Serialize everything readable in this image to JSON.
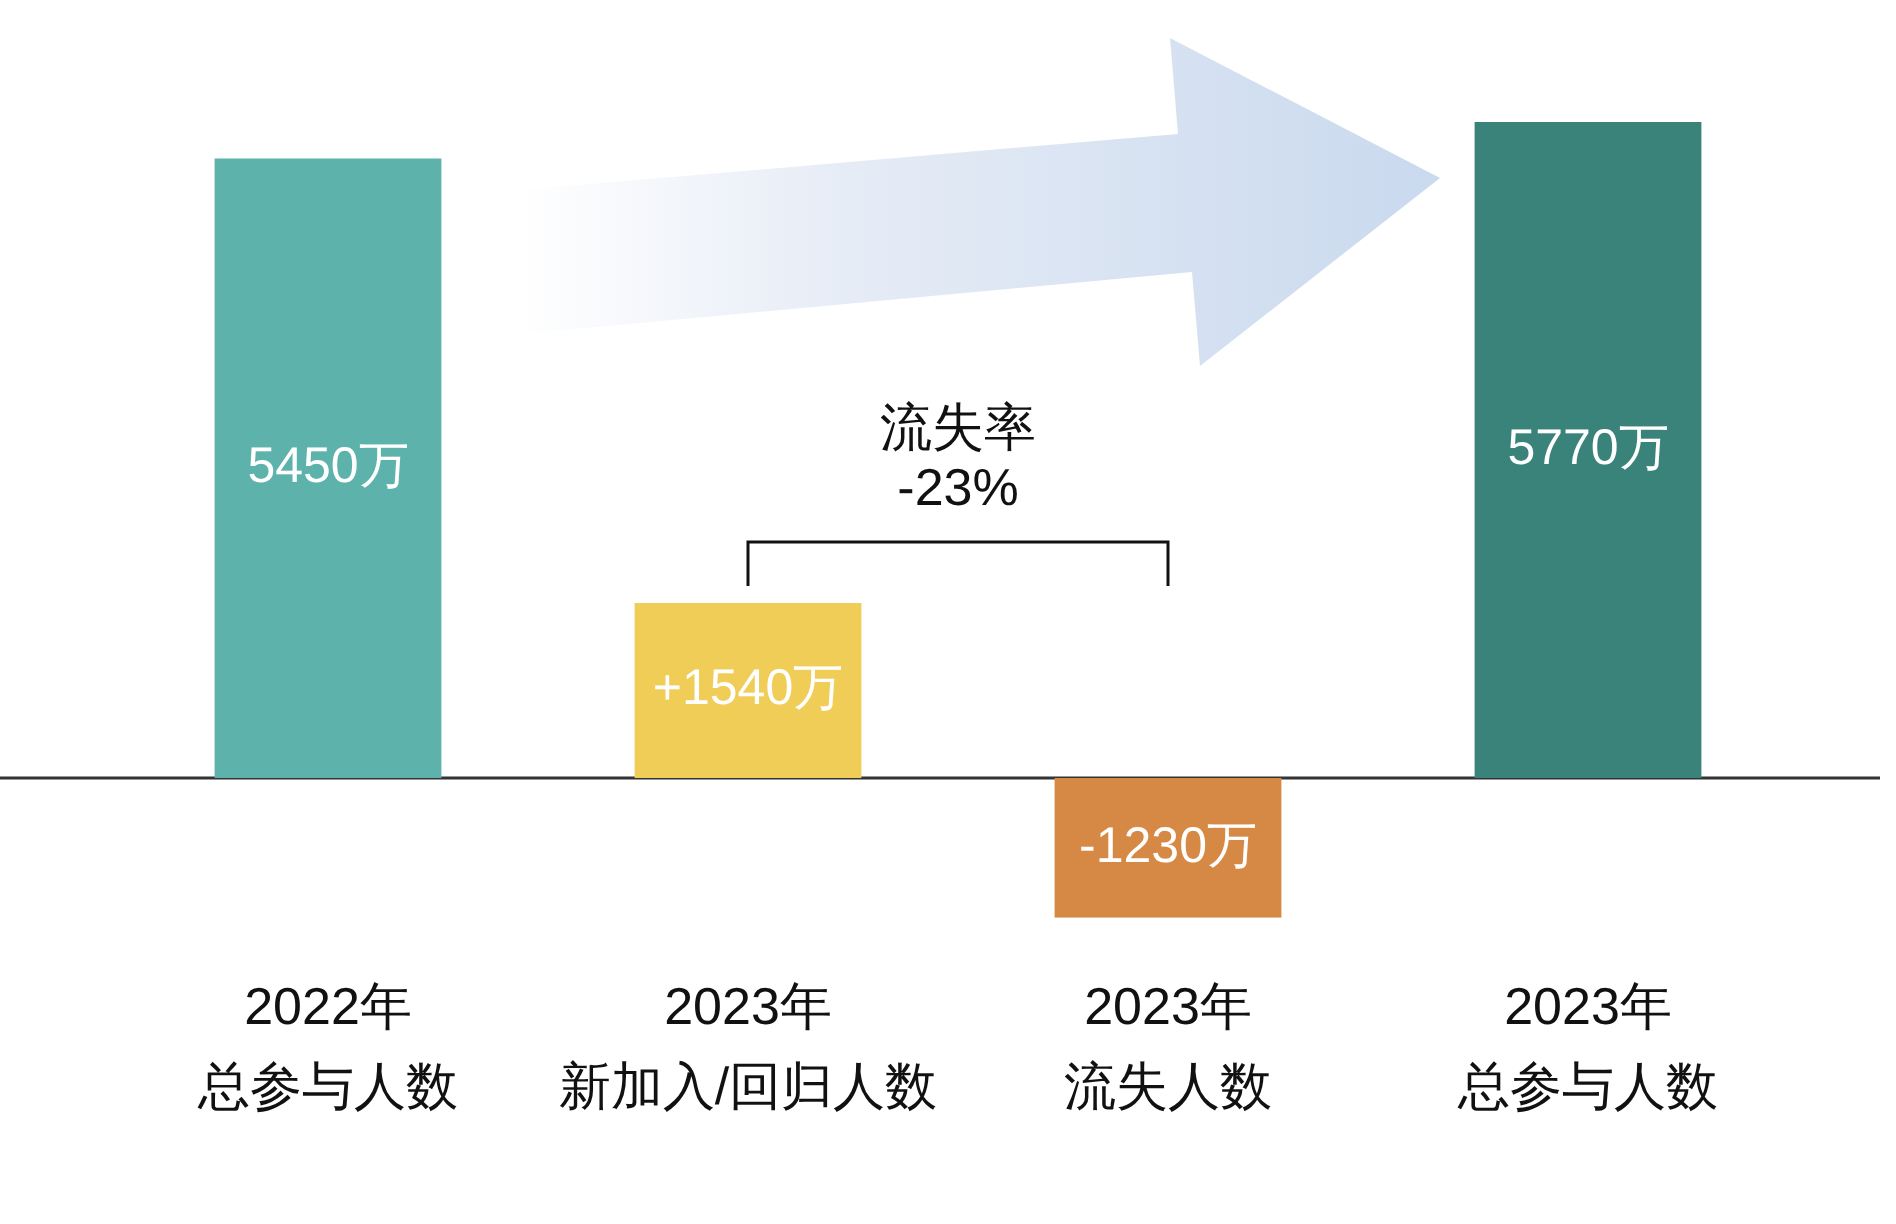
{
  "chart_data": {
    "type": "bar",
    "categories": [
      "2022年总参与人数",
      "2023年新加入/回归人数",
      "2023年流失人数",
      "2023年总参与人数"
    ],
    "values": [
      5450,
      1540,
      -1230,
      5770
    ],
    "colors": [
      "#5db3ac",
      "#f0cd57",
      "#d68944",
      "#3a837b"
    ],
    "value_labels": [
      "5450万",
      "+1540万",
      "-1230万",
      "5770万"
    ],
    "annotations": [
      "流失率\n-23%"
    ],
    "tick_labels": "x"
  }
}
